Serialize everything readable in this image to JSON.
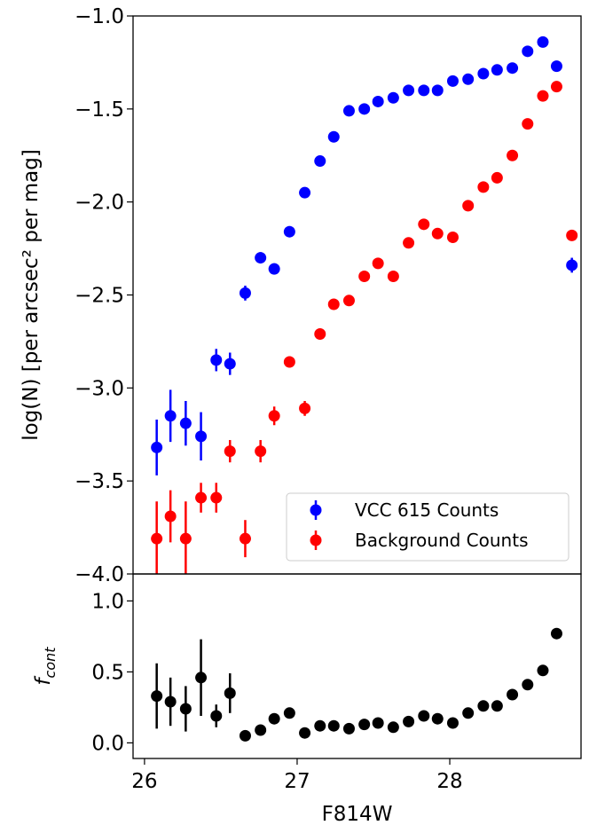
{
  "chart_data": [
    {
      "type": "scatter",
      "ylabel": "log(N) [per arcsec² per mag]",
      "xlim": [
        25.925,
        28.86
      ],
      "ylim": [
        -4.0,
        -1.0
      ],
      "yticks": [
        {
          "value": -4.0,
          "label": "−4.0"
        },
        {
          "value": -3.5,
          "label": "−3.5"
        },
        {
          "value": -3.0,
          "label": "−3.0"
        },
        {
          "value": -2.5,
          "label": "−2.5"
        },
        {
          "value": -2.0,
          "label": "−2.0"
        },
        {
          "value": -1.5,
          "label": "−1.5"
        },
        {
          "value": -1.0,
          "label": "−1.0"
        }
      ],
      "legend": "lower right",
      "series": [
        {
          "name": "VCC 615 Counts",
          "color": "#0000ff",
          "x": [
            26.08,
            26.17,
            26.27,
            26.37,
            26.47,
            26.56,
            26.66,
            26.76,
            26.85,
            26.95,
            27.05,
            27.15,
            27.24,
            27.34,
            27.44,
            27.53,
            27.63,
            27.73,
            27.83,
            27.92,
            28.02,
            28.12,
            28.22,
            28.31,
            28.41,
            28.51,
            28.61,
            28.7,
            28.8
          ],
          "values": [
            -3.32,
            -3.15,
            -3.19,
            -3.26,
            -2.85,
            -2.87,
            -2.49,
            -2.3,
            -2.36,
            -2.16,
            -1.95,
            -1.78,
            -1.65,
            -1.51,
            -1.5,
            -1.46,
            -1.44,
            -1.4,
            -1.4,
            -1.4,
            -1.35,
            -1.34,
            -1.31,
            -1.29,
            -1.28,
            -1.19,
            -1.14,
            -1.27,
            -2.34
          ],
          "errors": [
            0.15,
            0.14,
            0.12,
            0.13,
            0.06,
            0.06,
            0.04,
            0.03,
            0.03,
            0.03,
            0.02,
            0.01,
            0.01,
            0.01,
            0.01,
            0.01,
            0.01,
            0.01,
            0.01,
            0.01,
            0.01,
            0.01,
            0.01,
            0.01,
            0.01,
            0.01,
            0.01,
            0.01,
            0.04
          ]
        },
        {
          "name": "Background Counts",
          "color": "#ff0000",
          "x": [
            26.08,
            26.17,
            26.27,
            26.37,
            26.47,
            26.56,
            26.66,
            26.76,
            26.85,
            26.95,
            27.05,
            27.15,
            27.24,
            27.34,
            27.44,
            27.53,
            27.63,
            27.73,
            27.83,
            27.92,
            28.02,
            28.12,
            28.22,
            28.31,
            28.41,
            28.51,
            28.61,
            28.7,
            28.8
          ],
          "values": [
            -3.81,
            -3.69,
            -3.81,
            -3.59,
            -3.59,
            -3.34,
            -3.81,
            -3.34,
            -3.15,
            -2.86,
            -3.11,
            -2.71,
            -2.55,
            -2.53,
            -2.4,
            -2.33,
            -2.4,
            -2.22,
            -2.12,
            -2.17,
            -2.19,
            -2.02,
            -1.92,
            -1.87,
            -1.75,
            -1.58,
            -1.43,
            -1.38,
            -2.18
          ],
          "errors": [
            0.2,
            0.14,
            0.2,
            0.08,
            0.08,
            0.06,
            0.1,
            0.06,
            0.05,
            0.03,
            0.04,
            0.03,
            0.02,
            0.02,
            0.02,
            0.02,
            0.02,
            0.01,
            0.01,
            0.01,
            0.01,
            0.01,
            0.01,
            0.01,
            0.01,
            0.01,
            0.01,
            0.01,
            0.01
          ]
        }
      ]
    },
    {
      "type": "scatter",
      "xlabel": "F814W",
      "ylabel": [
        "f",
        "cont"
      ],
      "xlim": [
        25.925,
        28.86
      ],
      "ylim": [
        -0.11,
        1.19
      ],
      "xticks": [
        26,
        27,
        28
      ],
      "yticks": [
        {
          "value": 0,
          "label": "0.0"
        },
        0.5,
        {
          "value": 1,
          "label": "1.0"
        }
      ],
      "series": [
        {
          "color": "#000000",
          "x": [
            26.08,
            26.17,
            26.27,
            26.37,
            26.47,
            26.56,
            26.66,
            26.76,
            26.85,
            26.95,
            27.05,
            27.15,
            27.24,
            27.34,
            27.44,
            27.53,
            27.63,
            27.73,
            27.83,
            27.92,
            28.02,
            28.12,
            28.22,
            28.31,
            28.41,
            28.51,
            28.61,
            28.7
          ],
          "values": [
            0.33,
            0.29,
            0.24,
            0.46,
            0.19,
            0.35,
            0.05,
            0.09,
            0.17,
            0.21,
            0.07,
            0.12,
            0.12,
            0.1,
            0.13,
            0.14,
            0.11,
            0.15,
            0.19,
            0.17,
            0.14,
            0.21,
            0.26,
            0.26,
            0.34,
            0.41,
            0.51,
            0.77
          ],
          "errors": [
            0.23,
            0.17,
            0.16,
            0.27,
            0.08,
            0.14,
            0.01,
            0.01,
            0.03,
            0.03,
            0.01,
            0.01,
            0.01,
            0.01,
            0.01,
            0.01,
            0.01,
            0.01,
            0.01,
            0.01,
            0.01,
            0.01,
            0.01,
            0.01,
            0.01,
            0.01,
            0.01,
            0.01
          ]
        }
      ]
    }
  ]
}
